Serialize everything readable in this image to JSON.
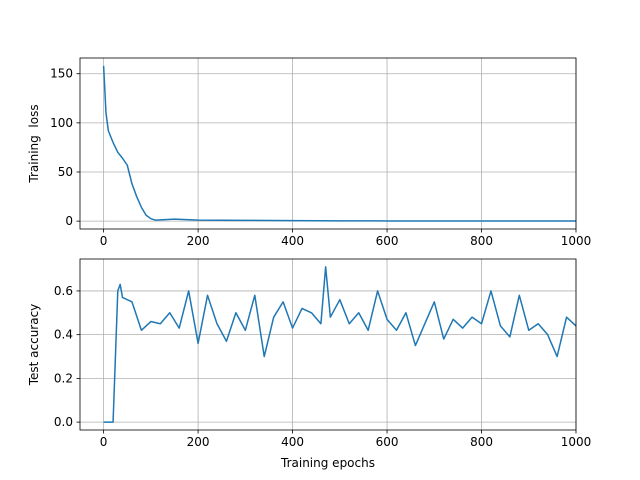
{
  "chart_data": [
    {
      "type": "line",
      "y_label": "Training  loss",
      "x": [
        0,
        5,
        10,
        20,
        30,
        40,
        50,
        60,
        70,
        80,
        90,
        100,
        110,
        130,
        150,
        200,
        300,
        400,
        500,
        600,
        700,
        800,
        900,
        1000
      ],
      "series": [
        {
          "color": "#1f77b4",
          "values": [
            158,
            110,
            92,
            80,
            70,
            64,
            57,
            38,
            25,
            14,
            6,
            2.5,
            1,
            1.5,
            2,
            1,
            0.8,
            0.5,
            0.3,
            0.2,
            0.2,
            0.1,
            0.1,
            0.1
          ]
        }
      ],
      "xlim": [
        -50,
        1000
      ],
      "xticks": [
        0,
        200,
        400,
        600,
        800,
        1000
      ],
      "ylim": [
        -8,
        166
      ],
      "yticks": [
        0,
        50,
        100,
        150
      ],
      "grid": true
    },
    {
      "type": "line",
      "x_label": "Training epochs",
      "y_label": "Test accuracy",
      "x": [
        0,
        10,
        20,
        25,
        30,
        35,
        40,
        60,
        80,
        100,
        120,
        140,
        160,
        180,
        200,
        220,
        240,
        260,
        280,
        300,
        320,
        340,
        360,
        380,
        400,
        420,
        440,
        460,
        470,
        480,
        500,
        520,
        540,
        560,
        580,
        600,
        620,
        640,
        660,
        680,
        700,
        720,
        740,
        760,
        780,
        800,
        820,
        840,
        860,
        880,
        900,
        920,
        940,
        960,
        980,
        1000
      ],
      "series": [
        {
          "color": "#1f77b4",
          "values": [
            0,
            0,
            0,
            0.3,
            0.6,
            0.63,
            0.57,
            0.55,
            0.42,
            0.46,
            0.45,
            0.5,
            0.43,
            0.6,
            0.36,
            0.58,
            0.45,
            0.37,
            0.5,
            0.42,
            0.58,
            0.3,
            0.48,
            0.55,
            0.43,
            0.52,
            0.5,
            0.45,
            0.71,
            0.48,
            0.56,
            0.45,
            0.5,
            0.42,
            0.6,
            0.47,
            0.42,
            0.5,
            0.35,
            0.45,
            0.55,
            0.38,
            0.47,
            0.43,
            0.48,
            0.45,
            0.6,
            0.44,
            0.39,
            0.58,
            0.42,
            0.45,
            0.4,
            0.3,
            0.48,
            0.44
          ]
        }
      ],
      "xlim": [
        -50,
        1000
      ],
      "xticks": [
        0,
        200,
        400,
        600,
        800,
        1000
      ],
      "ylim": [
        -0.036,
        0.746
      ],
      "yticks": [
        {
          "value": 0,
          "label": "0.0"
        },
        0.2,
        0.4,
        0.6
      ],
      "grid": true
    }
  ]
}
